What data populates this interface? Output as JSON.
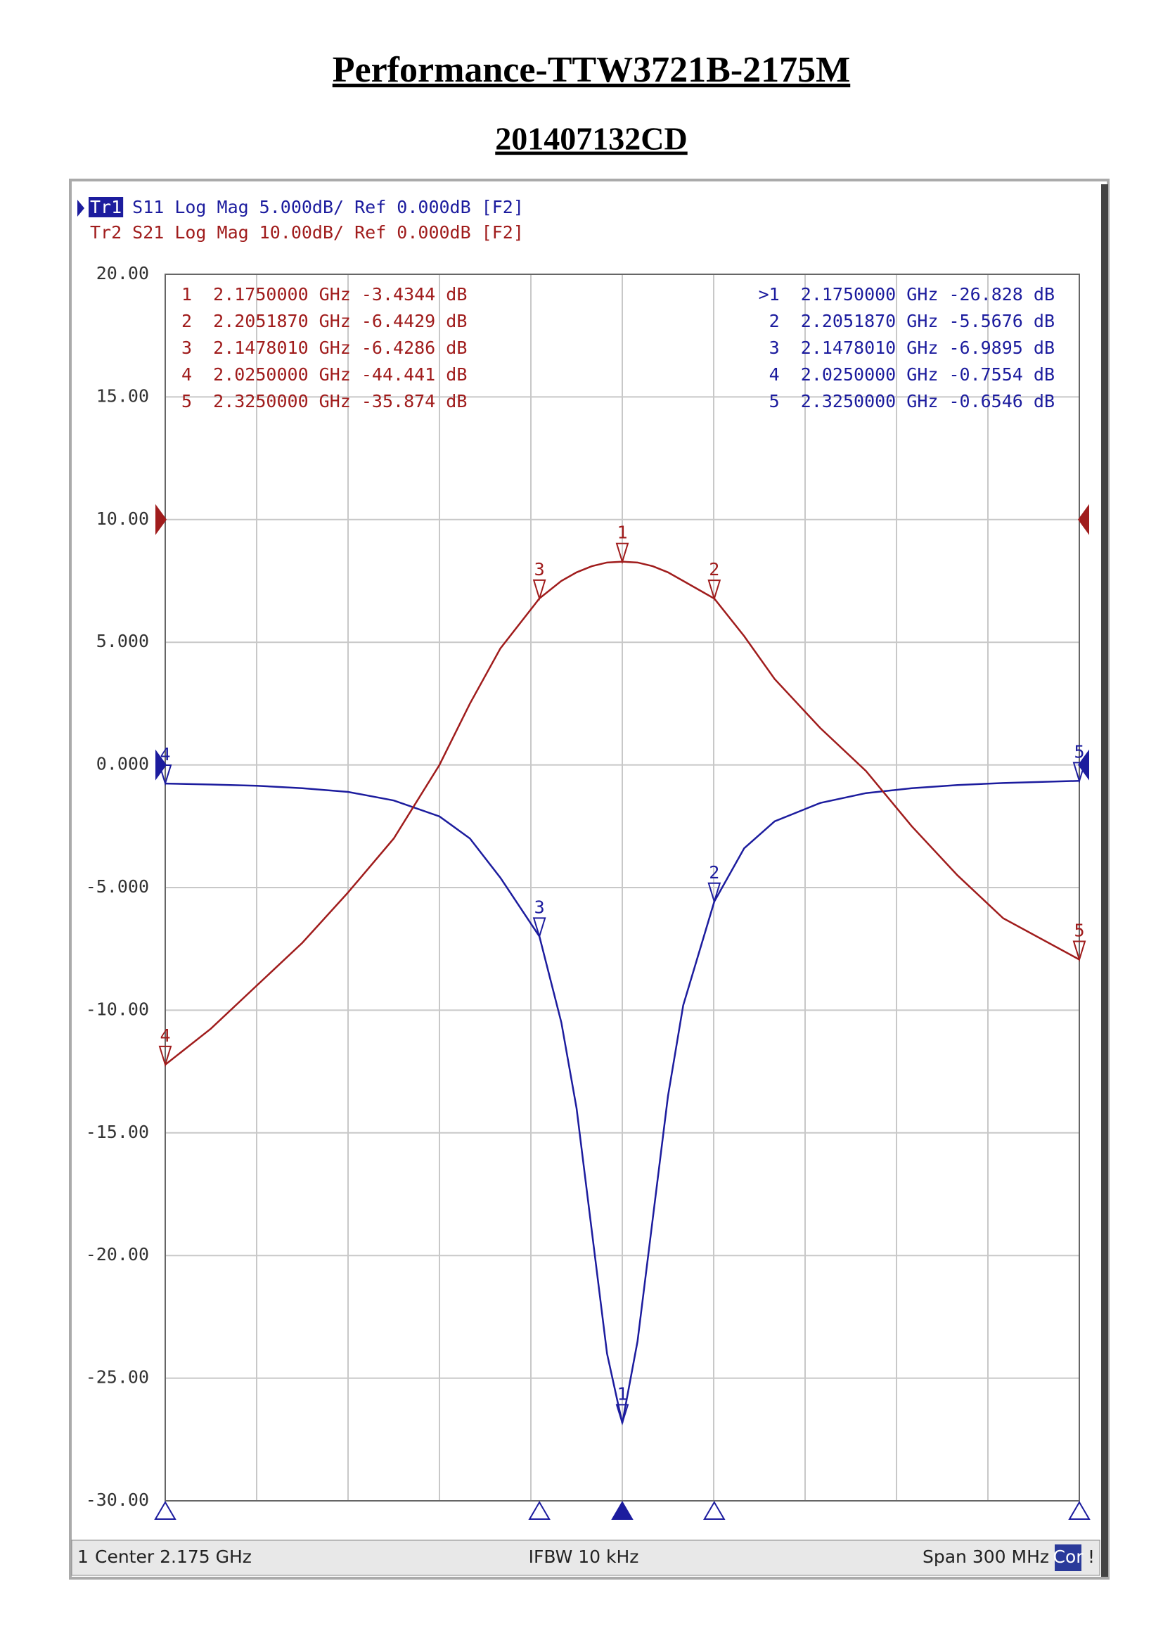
{
  "chart_data": {
    "type": "line",
    "title": "Performance-TTW3721B-2175M",
    "subtitle": "201407132CD",
    "x": [
      2.025,
      2.04,
      2.055,
      2.07,
      2.085,
      2.1,
      2.115,
      2.125,
      2.135,
      2.1478,
      2.155,
      2.16,
      2.165,
      2.17,
      2.175,
      2.18,
      2.185,
      2.19,
      2.195,
      2.2052,
      2.215,
      2.225,
      2.24,
      2.255,
      2.27,
      2.285,
      2.3,
      2.325
    ],
    "xlim": [
      2.025,
      2.325
    ],
    "ylim": [
      -30,
      20
    ],
    "yticks": [
      {
        "value": -30,
        "label": "-30.00"
      },
      {
        "value": -25,
        "label": "-25.00"
      },
      {
        "value": -20,
        "label": "-20.00"
      },
      {
        "value": -15,
        "label": "-15.00"
      },
      {
        "value": -10,
        "label": "-10.00"
      },
      {
        "value": -5,
        "label": "-5.000"
      },
      {
        "value": 0,
        "label": "0.000"
      },
      {
        "value": 5,
        "label": "5.000"
      },
      {
        "value": 10,
        "label": "10.00"
      },
      {
        "value": 15,
        "label": "15.00"
      },
      {
        "value": 20,
        "label": "20.00"
      }
    ],
    "y2lim": [
      -80,
      20
    ],
    "grid": true,
    "series": [
      {
        "trace": "Tr1",
        "name": "S11",
        "format": "Log Mag",
        "scale": "5.000dB/",
        "ref": "Ref 0.000dB",
        "channel": "[F2]",
        "color": "#1c1c9e",
        "ref_value": 0,
        "values": [
          -0.76,
          -0.8,
          -0.85,
          -0.95,
          -1.1,
          -1.45,
          -2.1,
          -3.0,
          -4.6,
          -6.99,
          -10.5,
          -14,
          -19,
          -24,
          -26.83,
          -23.5,
          -18.5,
          -13.5,
          -9.8,
          -5.57,
          -3.4,
          -2.3,
          -1.55,
          -1.15,
          -0.95,
          -0.82,
          -0.74,
          -0.65
        ],
        "markers": [
          {
            "id": "1",
            "x": 2.175,
            "value": -26.828,
            "row": ">1  2.1750000 GHz -26.828 dB"
          },
          {
            "id": "2",
            "x": 2.205187,
            "value": -5.5676,
            "row": "2  2.2051870 GHz -5.5676 dB"
          },
          {
            "id": "3",
            "x": 2.147801,
            "value": -6.9895,
            "row": "3  2.1478010 GHz -6.9895 dB"
          },
          {
            "id": "4",
            "x": 2.025,
            "value": -0.7554,
            "row": "4  2.0250000 GHz -0.7554 dB"
          },
          {
            "id": "5",
            "x": 2.325,
            "value": -0.6546,
            "row": "5  2.3250000 GHz -0.6546 dB"
          }
        ]
      },
      {
        "trace": "Tr2",
        "name": "S21",
        "format": "Log Mag",
        "scale": "10.00dB/",
        "ref": "Ref 0.000dB",
        "channel": "[F2]",
        "color": "#a01c1c",
        "ref_value": 0,
        "axis": "y2",
        "values": [
          -44.44,
          -41.5,
          -38,
          -34.5,
          -30.4,
          -26,
          -20,
          -15,
          -10.5,
          -6.43,
          -5.0,
          -4.3,
          -3.8,
          -3.5,
          -3.43,
          -3.5,
          -3.8,
          -4.3,
          -5.0,
          -6.44,
          -9.5,
          -13,
          -17,
          -20.5,
          -25,
          -29,
          -32.5,
          -35.87
        ],
        "markers": [
          {
            "id": "1",
            "x": 2.175,
            "value": -3.4344,
            "row": "1  2.1750000 GHz -3.4344 dB"
          },
          {
            "id": "2",
            "x": 2.205187,
            "value": -6.4429,
            "row": "2  2.2051870 GHz -6.4429 dB"
          },
          {
            "id": "3",
            "x": 2.147801,
            "value": -6.4286,
            "row": "3  2.1478010 GHz -6.4286 dB"
          },
          {
            "id": "4",
            "x": 2.025,
            "value": -44.441,
            "row": "4  2.0250000 GHz -44.441 dB"
          },
          {
            "id": "5",
            "x": 2.325,
            "value": -35.874,
            "row": "5  2.3250000 GHz -35.874 dB"
          }
        ]
      }
    ],
    "footer": {
      "channel": "1",
      "center": "Center 2.175 GHz",
      "ifbw": "IFBW 10 kHz",
      "span": "Span 300 MHz",
      "cor": "Cor",
      "alert": "!"
    }
  }
}
